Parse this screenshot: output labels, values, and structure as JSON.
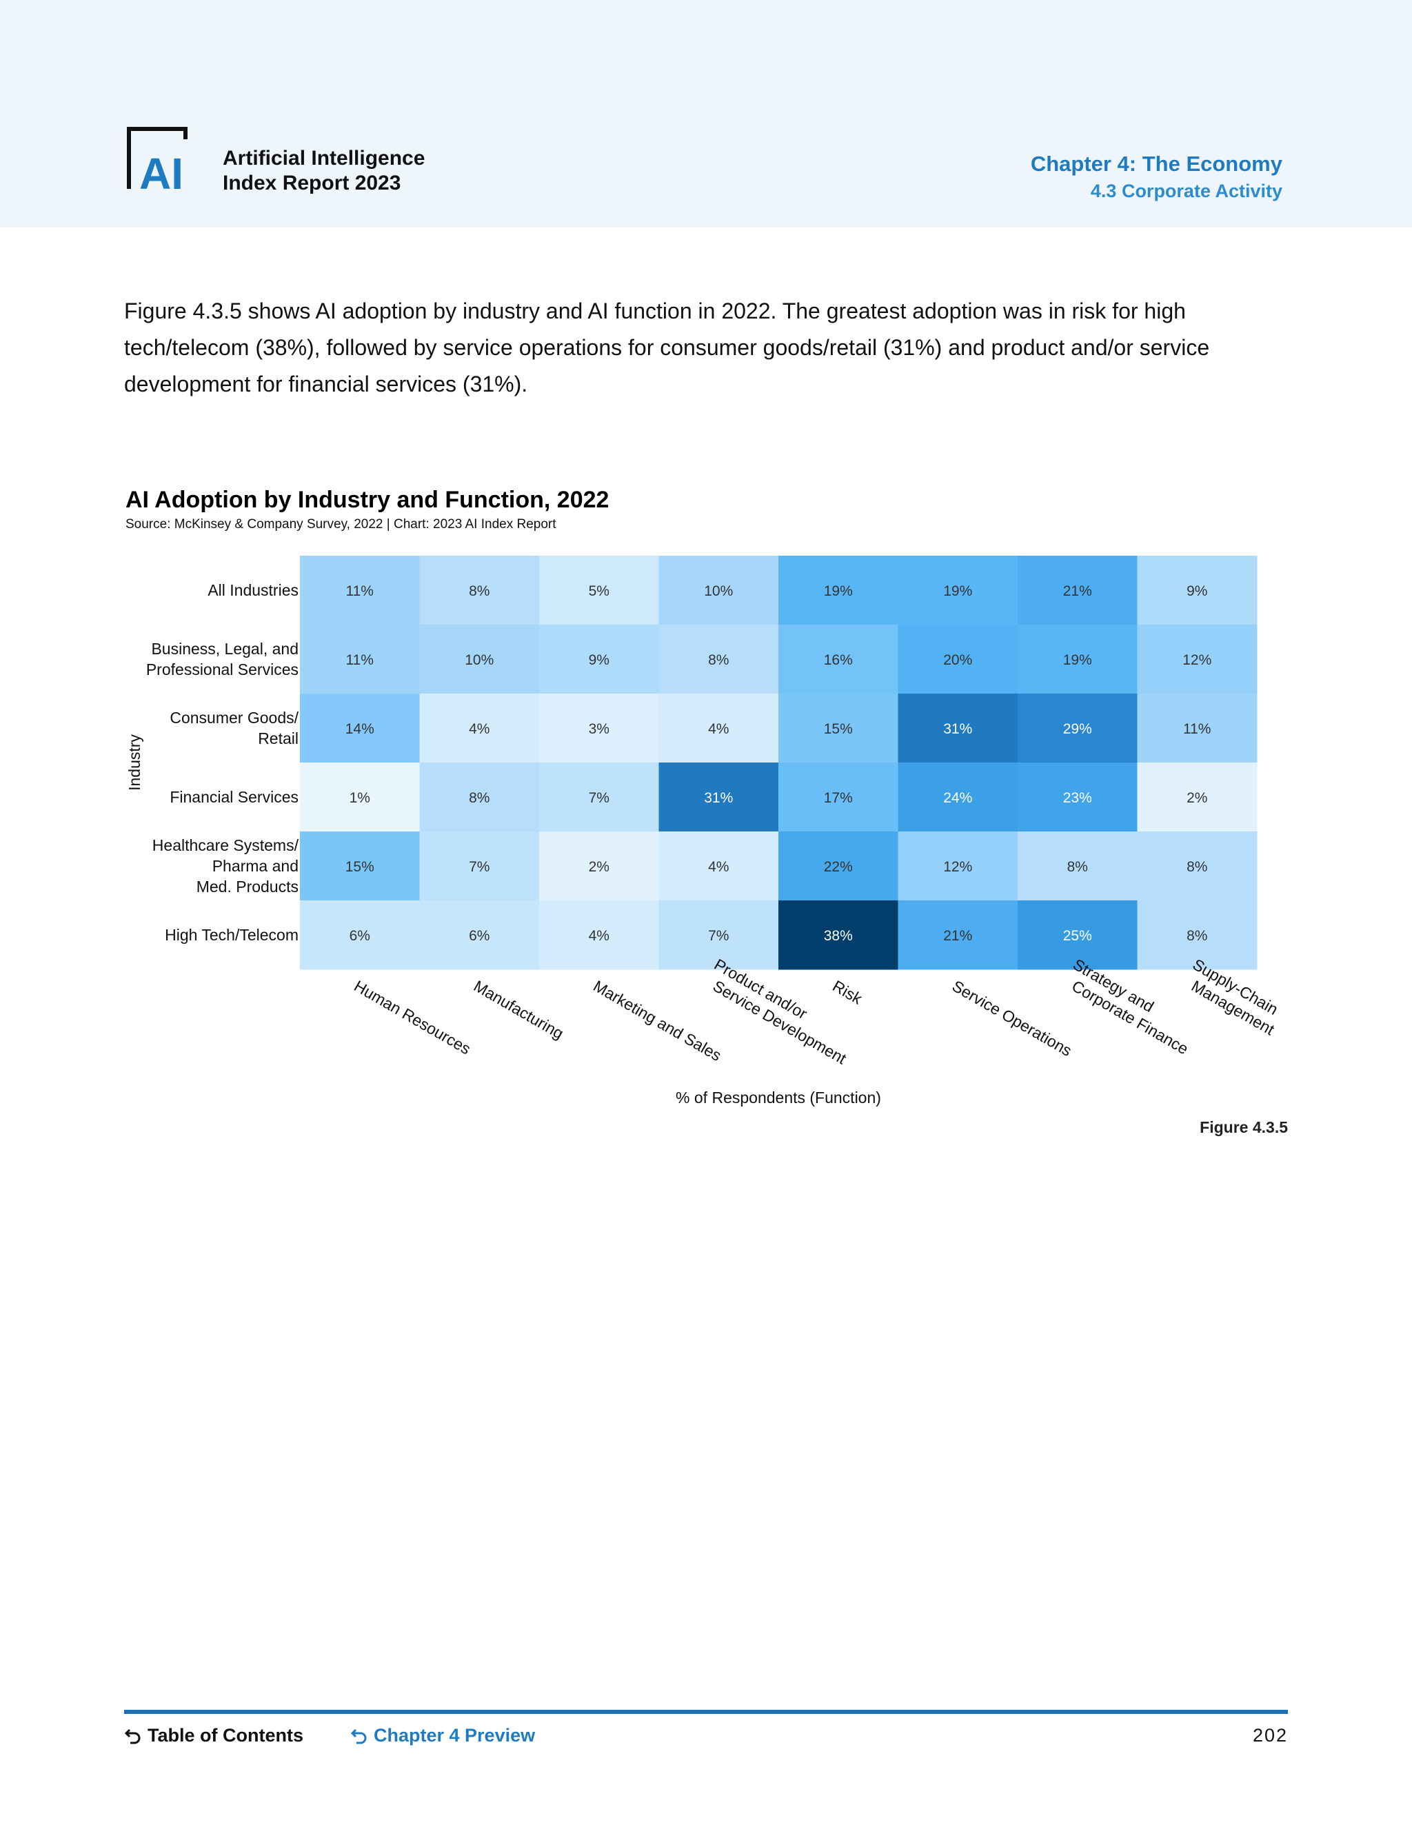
{
  "header": {
    "logo_text": "AI",
    "report_title_line1": "Artificial Intelligence",
    "report_title_line2": "Index Report 2023",
    "chapter_title": "Chapter 4: The Economy",
    "section_title": "4.3 Corporate Activity"
  },
  "intro_text": "Figure 4.3.5 shows AI adoption by industry and AI function in 2022. The greatest adoption was in risk for high tech/telecom (38%), followed by service operations for consumer goods/retail (31%) and product and/or service development for financial services (31%).",
  "figure_label": "Figure 4.3.5",
  "chart_data": {
    "type": "heatmap",
    "title": "AI Adoption by Industry and Function, 2022",
    "subtitle": "Source: McKinsey & Company Survey, 2022 | Chart: 2023 AI Index Report",
    "xlabel": "% of Respondents (Function)",
    "ylabel": "Industry",
    "x_categories": [
      "Human Resources",
      "Manufacturing",
      "Marketing and Sales",
      "Product and/or\nService Development",
      "Risk",
      "Service Operations",
      "Strategy and\nCorporate Finance",
      "Supply-Chain\nManagement"
    ],
    "y_categories": [
      "All Industries",
      "Business, Legal, and\nProfessional Services",
      "Consumer Goods/\nRetail",
      "Financial Services",
      "Healthcare Systems/\nPharma and\nMed. Products",
      "High Tech/Telecom"
    ],
    "values": [
      [
        11,
        8,
        5,
        10,
        19,
        19,
        21,
        9
      ],
      [
        11,
        10,
        9,
        8,
        16,
        20,
        19,
        12
      ],
      [
        14,
        4,
        3,
        4,
        15,
        31,
        29,
        11
      ],
      [
        1,
        8,
        7,
        31,
        17,
        24,
        23,
        2
      ],
      [
        15,
        7,
        2,
        4,
        22,
        12,
        8,
        8
      ],
      [
        6,
        6,
        4,
        7,
        38,
        21,
        25,
        8
      ]
    ],
    "value_suffix": "%",
    "color_scale": [
      "#e8f5fd",
      "#c9e7fb",
      "#a4d6fa",
      "#7cc6f9",
      "#55b4f5",
      "#3b9fe6",
      "#2a88d1",
      "#176aab",
      "#003f6b"
    ],
    "grid": false
  },
  "footer": {
    "toc_label": "Table of Contents",
    "chapter_preview_label": "Chapter 4 Preview",
    "page_number": "202"
  }
}
